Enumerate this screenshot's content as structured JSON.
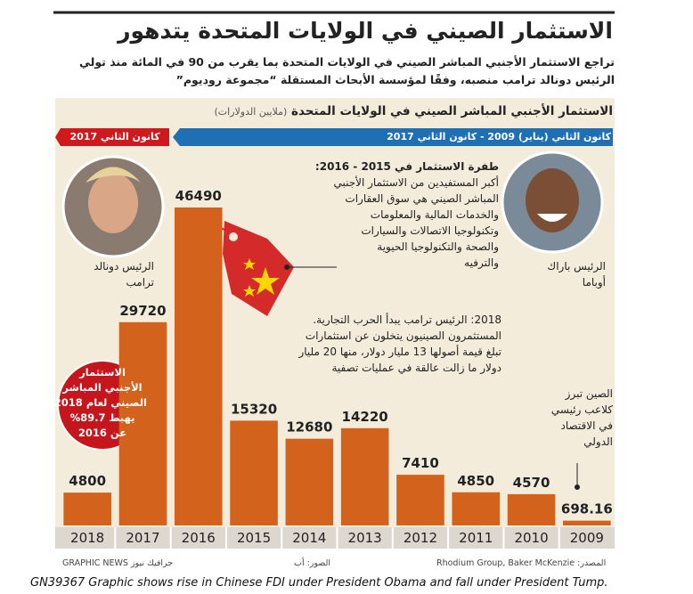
{
  "chart_data": {
    "type": "bar",
    "title": "الاستثمار الصيني في الولايات المتحدة يتدهور",
    "subtitle": [
      "تراجع الاستثمار الأجنبي المباشر الصيني في الولايات المتحدة بما يقرب من 90 في المائة منذ تولي",
      "الرئيس دونالد ترامب منصبه، وفقًا لمؤسسة الأبحاث المستقلة “مجموعة روديوم”"
    ],
    "chart_title": "الاستثمار الأجنبي المباشر الصيني في الولايات المتحدة",
    "unit": "(ملايين الدولارات)",
    "categories": [
      "2018",
      "2017",
      "2016",
      "2015",
      "2014",
      "2013",
      "2012",
      "2011",
      "2010",
      "2009"
    ],
    "values": [
      4800,
      29720,
      46490,
      15320,
      12680,
      14220,
      7410,
      4850,
      4570,
      698.16
    ],
    "color": "#d2621c",
    "banners": {
      "trump": "كانون الثاني 2017",
      "obama": "كانون الثاني (يناير) 2009 - كانون الثاني 2017"
    },
    "captions": {
      "trump": [
        "الرئيس دونالد",
        "ترامب"
      ],
      "obama": [
        "الرئيس باراك",
        "أوباما"
      ]
    },
    "annotations": {
      "boom": [
        "طفرة الاستثمار في 2015 - 2016:",
        "أكبر المستفيدين من الاستثمار الأجنبي",
        "المباشر الصيني هي سوق العقارات",
        "والخدمات المالية والمعلومات",
        "وتكنولوجيا الاتصالات والسيارات",
        "والصحة والتكنولوجيا الحيوية",
        "والترفيه"
      ],
      "trade_war": [
        "2018: الرئيس ترامب يبدأ الحرب التجارية.",
        "المستثمرون الصينيون يتخلون عن استثمارات",
        "تبلغ قيمة أصولها 13 مليار دولار، منها 20 مليار",
        "دولار ما زالت عالقة في عمليات تصفية"
      ],
      "drop": [
        "الاستثمار",
        "الأجنبي المباشر",
        "الصيني لعام 2018",
        "يهبط 89.7%",
        "عن 2016"
      ],
      "china": [
        "الصين تبرز",
        "كلاعب رئيسي",
        "في الاقتصاد",
        "الدولي"
      ]
    },
    "source": "المصدر: Rhodium Group, Baker McKenzie",
    "photos": "الصور: أب",
    "credit": "GRAPHIC NEWS جرافيك نيوز",
    "footer": "GN39367 Graphic shows rise in Chinese FDI under President Obama and fall under President Tump."
  }
}
